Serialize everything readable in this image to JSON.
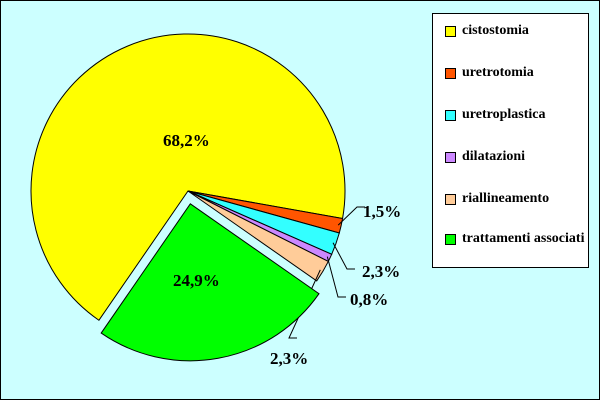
{
  "chart_data": {
    "type": "pie",
    "slices": [
      {
        "label": "cistostomia",
        "value": 68.2,
        "display": "68,2%",
        "color": "#ffff00"
      },
      {
        "label": "uretrotomia",
        "value": 1.5,
        "display": "1,5%",
        "color": "#ff5500"
      },
      {
        "label": "uretroplastica",
        "value": 2.3,
        "display": "2,3%",
        "color": "#33ffff"
      },
      {
        "label": "dilatazioni",
        "value": 0.8,
        "display": "0,8%",
        "color": "#cc88ff"
      },
      {
        "label": "riallineamento",
        "value": 2.3,
        "display": "2,3%",
        "color": "#ffcc99"
      },
      {
        "label": "trattamenti associati",
        "value": 24.9,
        "display": "24,9%",
        "color": "#00ff00"
      }
    ],
    "exploded_slice": "trattamenti associati",
    "legend_placement": "right",
    "background_color": "#ccffff"
  }
}
